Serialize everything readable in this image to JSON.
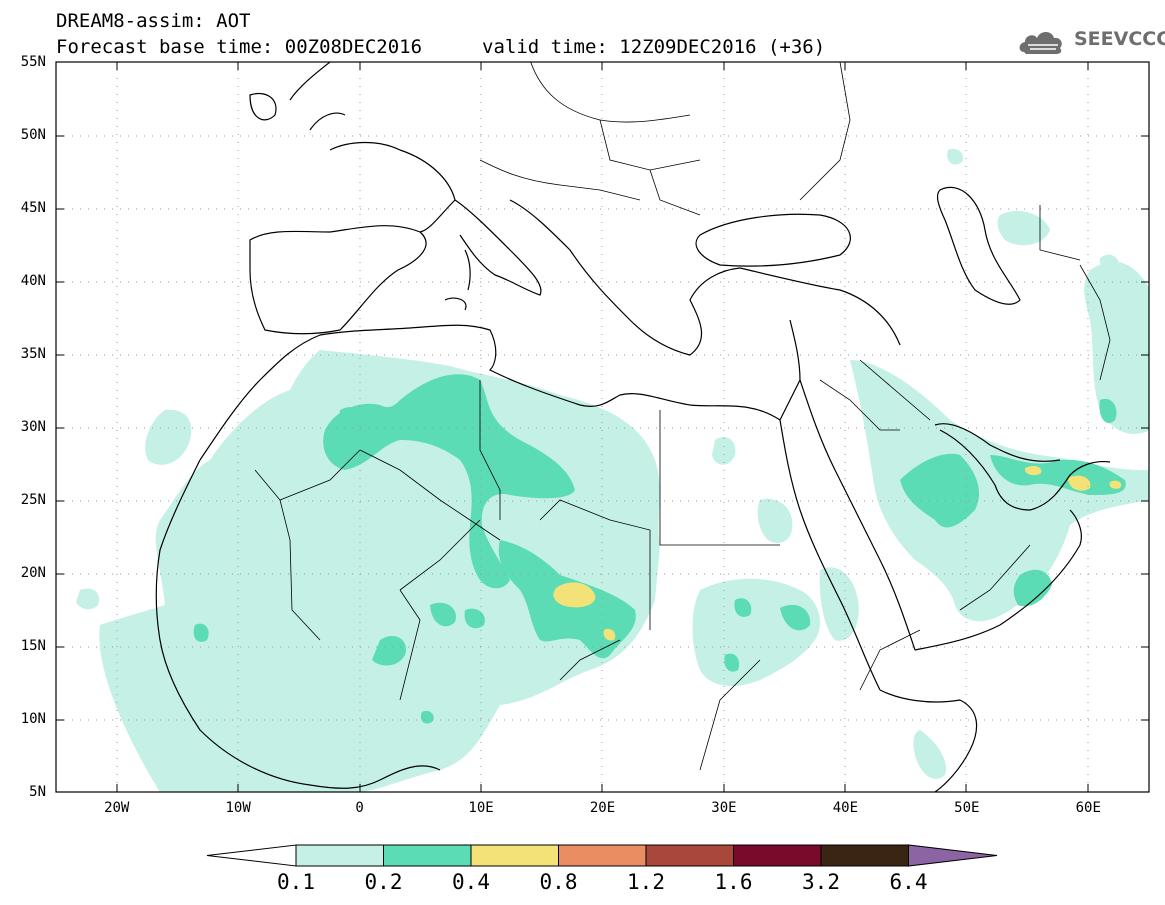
{
  "title": {
    "line1": "DREAM8-assim: AOT",
    "line2": "Forecast base time: 00Z08DEC2016",
    "valid": "valid time: 12Z09DEC2016 (+36)"
  },
  "logo": {
    "text": "SEEVCCC",
    "icon": "cloud-icon"
  },
  "map": {
    "lat_labels": [
      "55N",
      "50N",
      "45N",
      "40N",
      "35N",
      "30N",
      "25N",
      "20N",
      "15N",
      "10N",
      "5N"
    ],
    "lat_values": [
      55,
      50,
      45,
      40,
      35,
      30,
      25,
      20,
      15,
      10,
      5
    ],
    "lon_labels": [
      "20W",
      "10W",
      "0",
      "10E",
      "20E",
      "30E",
      "40E",
      "50E",
      "60E"
    ],
    "lon_values": [
      -20,
      -10,
      0,
      10,
      20,
      30,
      40,
      50,
      60
    ],
    "extent": {
      "lon_min": -25,
      "lon_max": 65,
      "lat_min": 5,
      "lat_max": 55
    }
  },
  "colorbar": {
    "labels": [
      "0.1",
      "0.2",
      "0.4",
      "0.8",
      "1.2",
      "1.6",
      "3.2",
      "6.4"
    ],
    "colors": [
      "#ffffff",
      "#c4f0e6",
      "#5cdcb4",
      "#f2e278",
      "#e88e62",
      "#a8483a",
      "#7a0a2c",
      "#3a2414",
      "#8c64a4"
    ]
  },
  "colors": {
    "light": "#c4f0e6",
    "medium": "#5cdcb4",
    "high": "#f2e278"
  }
}
